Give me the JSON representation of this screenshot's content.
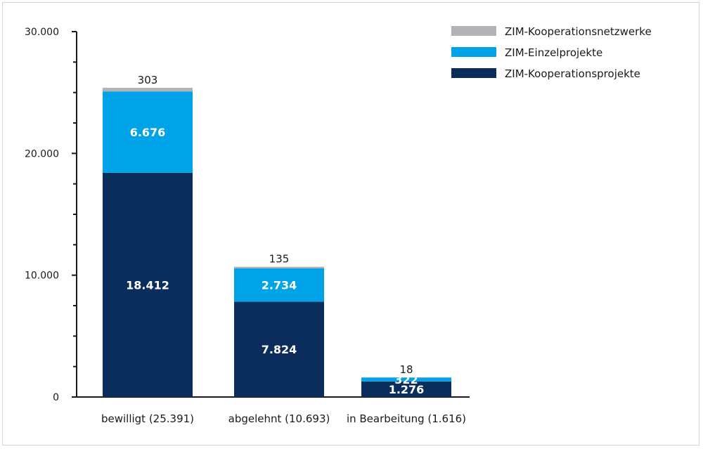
{
  "chart_data": {
    "type": "bar",
    "stacked": true,
    "categories": [
      "bewilligt (25.391)",
      "abgelehnt (10.693)",
      "in Bearbeitung (1.616)"
    ],
    "series": [
      {
        "name": "ZIM-Kooperationsprojekte",
        "values": [
          18412,
          7824,
          1276
        ],
        "labels": [
          "18.412",
          "7.824",
          "1.276"
        ],
        "color": "#0b2d5b"
      },
      {
        "name": "ZIM-Einzelprojekte",
        "values": [
          6676,
          2734,
          322
        ],
        "labels": [
          "6.676",
          "2.734",
          "322"
        ],
        "color": "#00a3e8"
      },
      {
        "name": "ZIM-Kooperationsnetzwerke",
        "values": [
          303,
          135,
          18
        ],
        "labels": [
          "303",
          "135",
          "18"
        ],
        "color": "#b1b3b6"
      }
    ],
    "ylim": [
      0,
      30000
    ],
    "yticks": [
      0,
      10000,
      20000,
      30000
    ],
    "ytick_labels": [
      "0",
      "10.000",
      "20.000",
      "30.000"
    ],
    "minor_tick_step": 2500,
    "legend_position": "top-right",
    "legend_order": [
      "ZIM-Kooperationsnetzwerke",
      "ZIM-Einzelprojekte",
      "ZIM-Kooperationsprojekte"
    ],
    "grid": false
  }
}
